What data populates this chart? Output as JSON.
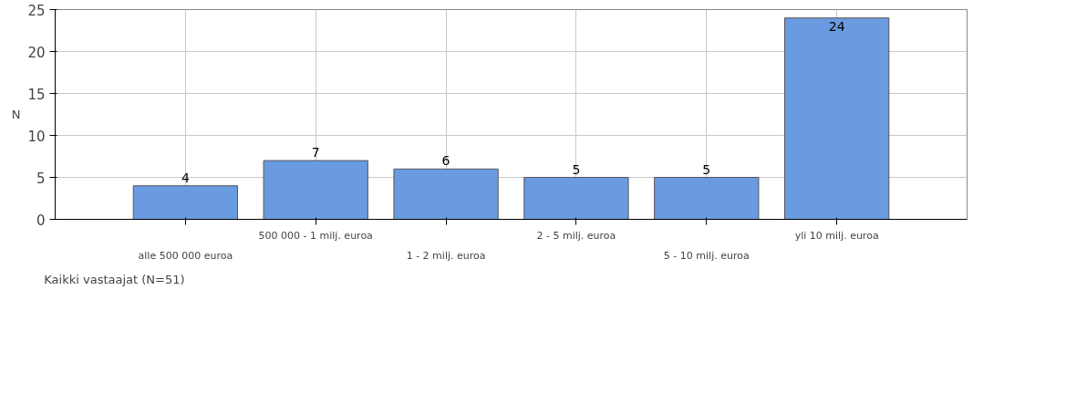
{
  "chart_data": {
    "type": "bar",
    "ylabel": "N",
    "categories": [
      "alle 500 000 euroa",
      "500 000 - 1 milj. euroa",
      "1 - 2 milj. euroa",
      "2 - 5 milj. euroa",
      "5 - 10 milj. euroa",
      "yli 10 milj. euroa"
    ],
    "series": [
      {
        "name": "Kaikki vastaajat (N=51)",
        "color": "#6a9be0",
        "values": [
          4,
          7,
          6,
          5,
          5,
          24
        ]
      }
    ],
    "ylim": [
      0,
      25
    ],
    "yticks": [
      0,
      5,
      10,
      15,
      20,
      25
    ],
    "grid": true,
    "legend": "bottom left",
    "data_labels": true
  }
}
